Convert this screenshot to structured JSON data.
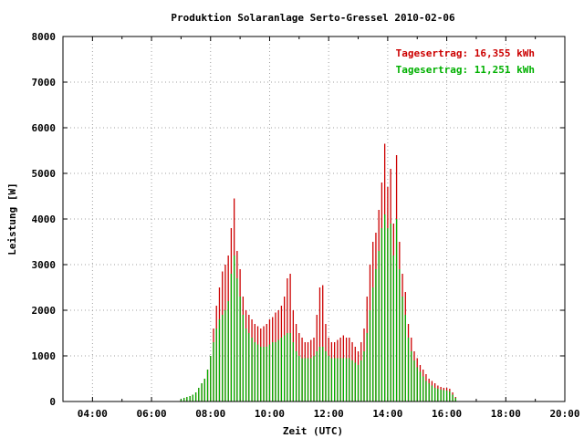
{
  "chart_data": {
    "type": "bar",
    "title": "Produktion Solaranlage Serto-Gressel 2010-02-06",
    "xlabel": "Zeit (UTC)",
    "ylabel": "Leistung [W]",
    "xlim": [
      3.0,
      20.0
    ],
    "ylim": [
      0,
      8000
    ],
    "x_ticks": [
      "04:00",
      "06:00",
      "08:00",
      "10:00",
      "12:00",
      "14:00",
      "16:00",
      "18:00",
      "20:00"
    ],
    "x_tick_values": [
      4,
      6,
      8,
      10,
      12,
      14,
      16,
      18,
      20
    ],
    "y_ticks": [
      "0",
      "1000",
      "2000",
      "3000",
      "4000",
      "5000",
      "6000",
      "7000",
      "8000"
    ],
    "y_tick_values": [
      0,
      1000,
      2000,
      3000,
      4000,
      5000,
      6000,
      7000,
      8000
    ],
    "grid": true,
    "legend_position": "top-right",
    "legend": [
      {
        "text": "Tagesertrag: 16,355 kWh",
        "color": "#cc0000"
      },
      {
        "text": "Tagesertrag: 11,251 kWh",
        "color": "#00b000"
      }
    ],
    "x": [
      7.0,
      7.1,
      7.2,
      7.3,
      7.4,
      7.5,
      7.6,
      7.7,
      7.8,
      7.9,
      8.0,
      8.1,
      8.2,
      8.3,
      8.4,
      8.5,
      8.6,
      8.7,
      8.8,
      8.9,
      9.0,
      9.1,
      9.2,
      9.3,
      9.4,
      9.5,
      9.6,
      9.7,
      9.8,
      9.9,
      10.0,
      10.1,
      10.2,
      10.3,
      10.4,
      10.5,
      10.6,
      10.7,
      10.8,
      10.9,
      11.0,
      11.1,
      11.2,
      11.3,
      11.4,
      11.5,
      11.6,
      11.7,
      11.8,
      11.9,
      12.0,
      12.1,
      12.2,
      12.3,
      12.4,
      12.5,
      12.6,
      12.7,
      12.8,
      12.9,
      13.0,
      13.1,
      13.2,
      13.3,
      13.4,
      13.5,
      13.6,
      13.7,
      13.8,
      13.9,
      14.0,
      14.1,
      14.2,
      14.3,
      14.4,
      14.5,
      14.6,
      14.7,
      14.8,
      14.9,
      15.0,
      15.1,
      15.2,
      15.3,
      15.4,
      15.5,
      15.6,
      15.7,
      15.8,
      15.9,
      16.0,
      16.1,
      16.2,
      16.3
    ],
    "series": [
      {
        "color": "#cc0000",
        "values": [
          50,
          80,
          100,
          120,
          150,
          200,
          300,
          400,
          500,
          700,
          1000,
          1600,
          2100,
          2500,
          2850,
          3000,
          3200,
          3800,
          4450,
          3300,
          2900,
          2300,
          2000,
          1900,
          1800,
          1700,
          1650,
          1600,
          1650,
          1700,
          1800,
          1850,
          1950,
          2000,
          2100,
          2300,
          2700,
          2800,
          2000,
          1700,
          1500,
          1400,
          1300,
          1300,
          1350,
          1400,
          1900,
          2500,
          2550,
          1700,
          1400,
          1300,
          1300,
          1350,
          1400,
          1450,
          1400,
          1400,
          1300,
          1200,
          1100,
          1300,
          1600,
          2300,
          3000,
          3500,
          3700,
          4200,
          4800,
          5650,
          4700,
          5100,
          3900,
          5400,
          3500,
          2800,
          2400,
          1700,
          1400,
          1100,
          950,
          800,
          700,
          600,
          500,
          450,
          400,
          350,
          320,
          300,
          300,
          280,
          200,
          100
        ]
      },
      {
        "color": "#00b000",
        "values": [
          50,
          80,
          100,
          120,
          150,
          200,
          300,
          400,
          500,
          700,
          1000,
          1300,
          1600,
          1800,
          1900,
          2000,
          2200,
          2800,
          3200,
          2700,
          2300,
          1900,
          1600,
          1500,
          1400,
          1300,
          1250,
          1200,
          1200,
          1200,
          1250,
          1300,
          1300,
          1350,
          1400,
          1450,
          1500,
          1500,
          1300,
          1100,
          1000,
          950,
          950,
          950,
          950,
          1000,
          1100,
          1200,
          1200,
          1100,
          1000,
          950,
          950,
          950,
          950,
          950,
          950,
          950,
          900,
          850,
          800,
          900,
          1100,
          1500,
          2000,
          2500,
          2900,
          3300,
          3800,
          4100,
          3800,
          3900,
          3200,
          4000,
          2900,
          2300,
          1900,
          1400,
          1100,
          900,
          750,
          650,
          550,
          450,
          400,
          350,
          300,
          280,
          260,
          250,
          240,
          220,
          150,
          80
        ]
      }
    ]
  }
}
